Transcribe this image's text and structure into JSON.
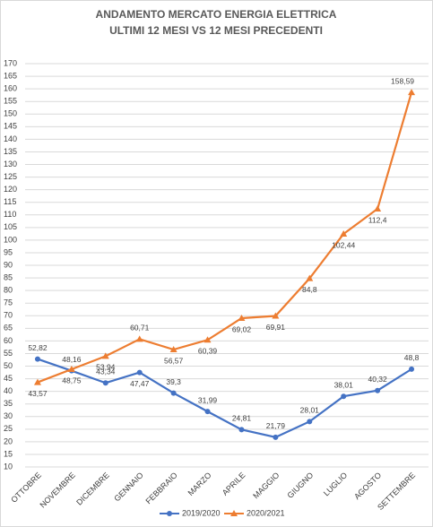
{
  "chart_data": {
    "type": "line",
    "title": "ANDAMENTO MERCATO ENERGIA ELETTRICA",
    "subtitle": "ULTIMI 12 MESI VS 12 MESI PRECEDENTI",
    "categories": [
      "OTTOBRE",
      "NOVEMBRE",
      "DICEMBRE",
      "GENNAIO",
      "FEBBRAIO",
      "MARZO",
      "APRILE",
      "MAGGIO",
      "GIUGNO",
      "LUGLIO",
      "AGOSTO",
      "SETTEMBRE"
    ],
    "series": [
      {
        "name": "2019/2020",
        "color": "#4472c4",
        "marker": "circle",
        "values": [
          52.82,
          48.16,
          43.34,
          47.47,
          39.3,
          31.99,
          24.81,
          21.79,
          28.01,
          38.01,
          40.32,
          48.8
        ],
        "value_labels": [
          "52,82",
          "48,16",
          "43,34",
          "47,47",
          "39,3",
          "31,99",
          "24,81",
          "21,79",
          "28,01",
          "38,01",
          "40,32",
          "48,8"
        ]
      },
      {
        "name": "2020/2021",
        "color": "#ed7d31",
        "marker": "triangle",
        "values": [
          43.57,
          48.75,
          53.94,
          60.71,
          56.57,
          60.39,
          69.02,
          69.91,
          84.8,
          102.44,
          112.4,
          158.59
        ],
        "value_labels": [
          "43,57",
          "48,75",
          "53,94",
          "60,71",
          "56,57",
          "60,39",
          "69,02",
          "69,91",
          "84,8",
          "102,44",
          "112,4",
          "158,59"
        ]
      }
    ],
    "ylim": [
      10,
      170
    ],
    "yticks": [
      10,
      15,
      20,
      25,
      30,
      35,
      40,
      45,
      50,
      55,
      60,
      65,
      70,
      75,
      80,
      85,
      90,
      95,
      100,
      105,
      110,
      115,
      120,
      125,
      130,
      135,
      140,
      145,
      150,
      155,
      160,
      165,
      170
    ],
    "grid": true,
    "legend": "bottom"
  }
}
